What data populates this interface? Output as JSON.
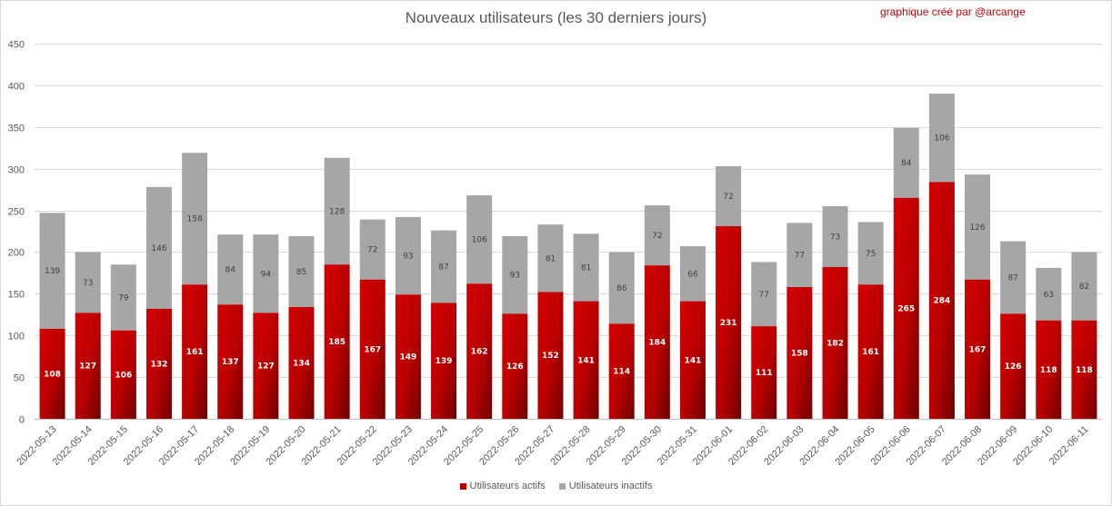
{
  "chart_data": {
    "type": "bar",
    "stacked": true,
    "title": "Nouveaux utilisateurs  (les 30 derniers  jours)",
    "annotation": "graphique créé par @arcange",
    "categories": [
      "2022-05-13",
      "2022-05-14",
      "2022-05-15",
      "2022-05-16",
      "2022-05-17",
      "2022-05-18",
      "2022-05-19",
      "2022-05-20",
      "2022-05-21",
      "2022-05-22",
      "2022-05-23",
      "2022-05-24",
      "2022-05-25",
      "2022-05-26",
      "2022-05-27",
      "2022-05-28",
      "2022-05-29",
      "2022-05-30",
      "2022-05-31",
      "2022-06-01",
      "2022-06-02",
      "2022-06-03",
      "2022-06-04",
      "2022-06-05",
      "2022-06-06",
      "2022-06-07",
      "2022-06-08",
      "2022-06-09",
      "2022-06-10",
      "2022-06-11"
    ],
    "series": [
      {
        "name": "Utilisateurs actifs",
        "color": "#c00000",
        "values": [
          108,
          127,
          106,
          132,
          161,
          137,
          127,
          134,
          185,
          167,
          149,
          139,
          162,
          126,
          152,
          141,
          114,
          184,
          141,
          231,
          111,
          158,
          182,
          161,
          265,
          284,
          167,
          126,
          118,
          118
        ]
      },
      {
        "name": "Utilisateurs inactifs",
        "color": "#a6a6a6",
        "values": [
          139,
          73,
          79,
          146,
          158,
          84,
          94,
          85,
          128,
          72,
          93,
          87,
          106,
          93,
          81,
          81,
          86,
          72,
          66,
          72,
          77,
          77,
          73,
          75,
          84,
          106,
          126,
          87,
          63,
          82
        ]
      }
    ],
    "ylim": [
      0,
      450
    ],
    "yticks": [
      0,
      50,
      100,
      150,
      200,
      250,
      300,
      350,
      400,
      450
    ],
    "grid": true,
    "legend_position": "bottom"
  }
}
